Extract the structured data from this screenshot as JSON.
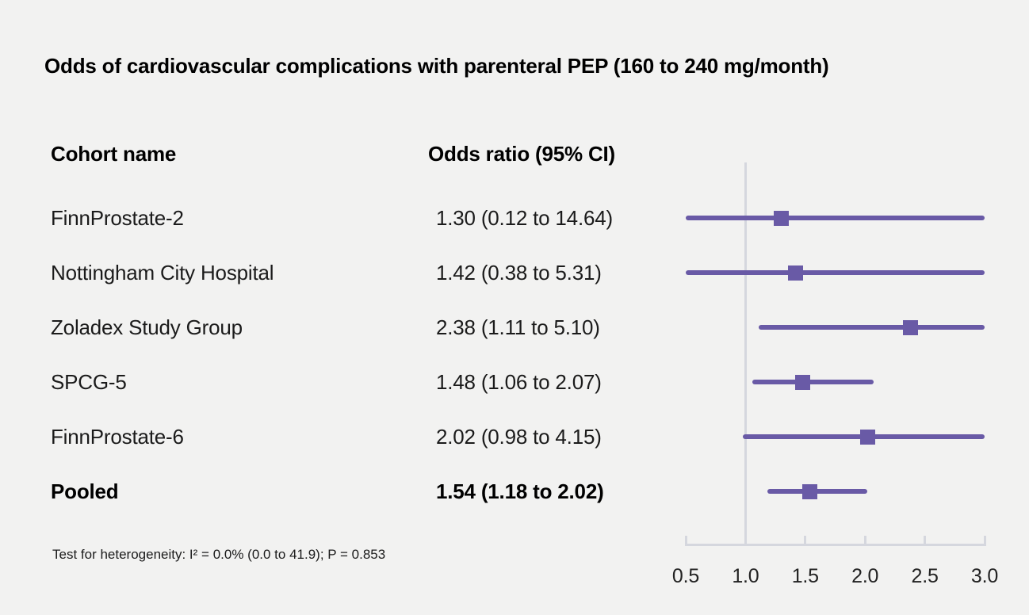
{
  "figure": {
    "title": "Odds of cardiovascular complications with parenteral PEP (160 to 240 mg/month)",
    "columns": {
      "cohort": "Cohort name",
      "odds_ratio": "Odds ratio (95% CI)"
    },
    "footnote": "Test for heterogeneity: I² = 0.0% (0.0 to 41.9); P = 0.853"
  },
  "chart_data": {
    "type": "forest",
    "title": "Odds of cardiovascular complications with parenteral PEP (160 to 240 mg/month)",
    "columns": [
      "Cohort name",
      "Odds ratio (95% CI)"
    ],
    "rows": [
      {
        "name": "FinnProstate-2",
        "or_text": "1.30 (0.12 to 14.64)",
        "or": 1.3,
        "ci_low": 0.12,
        "ci_high": 14.64,
        "pooled": false
      },
      {
        "name": "Nottingham City Hospital",
        "or_text": "1.42 (0.38 to 5.31)",
        "or": 1.42,
        "ci_low": 0.38,
        "ci_high": 5.31,
        "pooled": false
      },
      {
        "name": "Zoladex Study Group",
        "or_text": "2.38 (1.11 to 5.10)",
        "or": 2.38,
        "ci_low": 1.11,
        "ci_high": 5.1,
        "pooled": false
      },
      {
        "name": "SPCG-5",
        "or_text": "1.48 (1.06 to 2.07)",
        "or": 1.48,
        "ci_low": 1.06,
        "ci_high": 2.07,
        "pooled": false
      },
      {
        "name": "FinnProstate-6",
        "or_text": "2.02 (0.98 to 4.15)",
        "or": 2.02,
        "ci_low": 0.98,
        "ci_high": 4.15,
        "pooled": false
      },
      {
        "name": "Pooled",
        "or_text": "1.54 (1.18 to 2.02)",
        "or": 1.54,
        "ci_low": 1.18,
        "ci_high": 2.02,
        "pooled": true
      }
    ],
    "axis": {
      "tick_labels": [
        "0.5",
        "1.0",
        "1.5",
        "2.0",
        "2.5",
        "3.0"
      ],
      "tick_values": [
        0.5,
        1.0,
        1.5,
        2.0,
        2.5,
        3.0
      ],
      "range": [
        0.5,
        3.0
      ],
      "reference_value": 1.0
    },
    "footnote": "Test for heterogeneity: I² = 0.0% (0.0 to 41.9); P = 0.853",
    "colors": {
      "marker": "#695aa6",
      "ci_line": "#695aa6",
      "axis_line": "#d5d7de",
      "background": "#f2f2f1",
      "text": "#1a1a1a"
    }
  }
}
